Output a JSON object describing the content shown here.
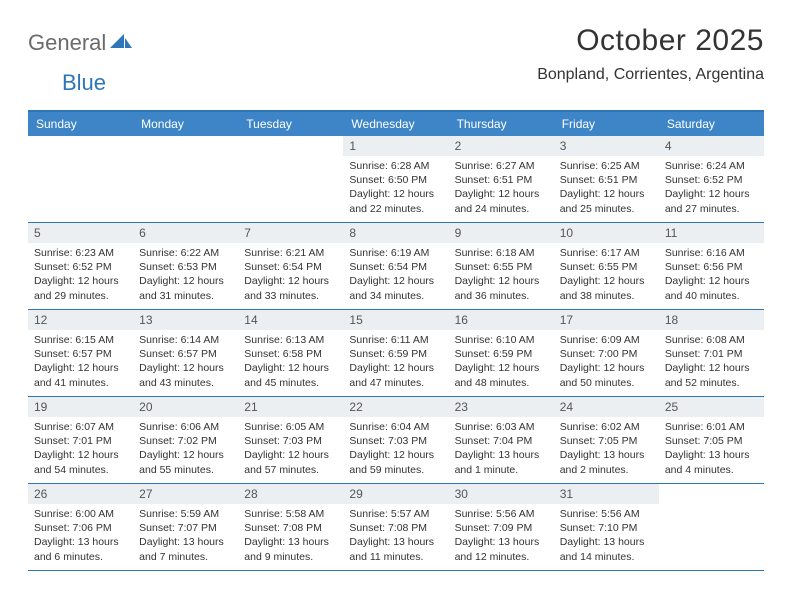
{
  "logo": {
    "general": "General",
    "blue": "Blue"
  },
  "title": "October 2025",
  "location": "Bonpland, Corrientes, Argentina",
  "colors": {
    "header_bar": "#3d85c6",
    "border": "#2f76b8",
    "daynum_bg": "#eceff1",
    "text": "#333333"
  },
  "days_of_week": [
    "Sunday",
    "Monday",
    "Tuesday",
    "Wednesday",
    "Thursday",
    "Friday",
    "Saturday"
  ],
  "weeks": [
    [
      null,
      null,
      null,
      {
        "n": "1",
        "sr": "Sunrise: 6:28 AM",
        "ss": "Sunset: 6:50 PM",
        "dl": "Daylight: 12 hours and 22 minutes."
      },
      {
        "n": "2",
        "sr": "Sunrise: 6:27 AM",
        "ss": "Sunset: 6:51 PM",
        "dl": "Daylight: 12 hours and 24 minutes."
      },
      {
        "n": "3",
        "sr": "Sunrise: 6:25 AM",
        "ss": "Sunset: 6:51 PM",
        "dl": "Daylight: 12 hours and 25 minutes."
      },
      {
        "n": "4",
        "sr": "Sunrise: 6:24 AM",
        "ss": "Sunset: 6:52 PM",
        "dl": "Daylight: 12 hours and 27 minutes."
      }
    ],
    [
      {
        "n": "5",
        "sr": "Sunrise: 6:23 AM",
        "ss": "Sunset: 6:52 PM",
        "dl": "Daylight: 12 hours and 29 minutes."
      },
      {
        "n": "6",
        "sr": "Sunrise: 6:22 AM",
        "ss": "Sunset: 6:53 PM",
        "dl": "Daylight: 12 hours and 31 minutes."
      },
      {
        "n": "7",
        "sr": "Sunrise: 6:21 AM",
        "ss": "Sunset: 6:54 PM",
        "dl": "Daylight: 12 hours and 33 minutes."
      },
      {
        "n": "8",
        "sr": "Sunrise: 6:19 AM",
        "ss": "Sunset: 6:54 PM",
        "dl": "Daylight: 12 hours and 34 minutes."
      },
      {
        "n": "9",
        "sr": "Sunrise: 6:18 AM",
        "ss": "Sunset: 6:55 PM",
        "dl": "Daylight: 12 hours and 36 minutes."
      },
      {
        "n": "10",
        "sr": "Sunrise: 6:17 AM",
        "ss": "Sunset: 6:55 PM",
        "dl": "Daylight: 12 hours and 38 minutes."
      },
      {
        "n": "11",
        "sr": "Sunrise: 6:16 AM",
        "ss": "Sunset: 6:56 PM",
        "dl": "Daylight: 12 hours and 40 minutes."
      }
    ],
    [
      {
        "n": "12",
        "sr": "Sunrise: 6:15 AM",
        "ss": "Sunset: 6:57 PM",
        "dl": "Daylight: 12 hours and 41 minutes."
      },
      {
        "n": "13",
        "sr": "Sunrise: 6:14 AM",
        "ss": "Sunset: 6:57 PM",
        "dl": "Daylight: 12 hours and 43 minutes."
      },
      {
        "n": "14",
        "sr": "Sunrise: 6:13 AM",
        "ss": "Sunset: 6:58 PM",
        "dl": "Daylight: 12 hours and 45 minutes."
      },
      {
        "n": "15",
        "sr": "Sunrise: 6:11 AM",
        "ss": "Sunset: 6:59 PM",
        "dl": "Daylight: 12 hours and 47 minutes."
      },
      {
        "n": "16",
        "sr": "Sunrise: 6:10 AM",
        "ss": "Sunset: 6:59 PM",
        "dl": "Daylight: 12 hours and 48 minutes."
      },
      {
        "n": "17",
        "sr": "Sunrise: 6:09 AM",
        "ss": "Sunset: 7:00 PM",
        "dl": "Daylight: 12 hours and 50 minutes."
      },
      {
        "n": "18",
        "sr": "Sunrise: 6:08 AM",
        "ss": "Sunset: 7:01 PM",
        "dl": "Daylight: 12 hours and 52 minutes."
      }
    ],
    [
      {
        "n": "19",
        "sr": "Sunrise: 6:07 AM",
        "ss": "Sunset: 7:01 PM",
        "dl": "Daylight: 12 hours and 54 minutes."
      },
      {
        "n": "20",
        "sr": "Sunrise: 6:06 AM",
        "ss": "Sunset: 7:02 PM",
        "dl": "Daylight: 12 hours and 55 minutes."
      },
      {
        "n": "21",
        "sr": "Sunrise: 6:05 AM",
        "ss": "Sunset: 7:03 PM",
        "dl": "Daylight: 12 hours and 57 minutes."
      },
      {
        "n": "22",
        "sr": "Sunrise: 6:04 AM",
        "ss": "Sunset: 7:03 PM",
        "dl": "Daylight: 12 hours and 59 minutes."
      },
      {
        "n": "23",
        "sr": "Sunrise: 6:03 AM",
        "ss": "Sunset: 7:04 PM",
        "dl": "Daylight: 13 hours and 1 minute."
      },
      {
        "n": "24",
        "sr": "Sunrise: 6:02 AM",
        "ss": "Sunset: 7:05 PM",
        "dl": "Daylight: 13 hours and 2 minutes."
      },
      {
        "n": "25",
        "sr": "Sunrise: 6:01 AM",
        "ss": "Sunset: 7:05 PM",
        "dl": "Daylight: 13 hours and 4 minutes."
      }
    ],
    [
      {
        "n": "26",
        "sr": "Sunrise: 6:00 AM",
        "ss": "Sunset: 7:06 PM",
        "dl": "Daylight: 13 hours and 6 minutes."
      },
      {
        "n": "27",
        "sr": "Sunrise: 5:59 AM",
        "ss": "Sunset: 7:07 PM",
        "dl": "Daylight: 13 hours and 7 minutes."
      },
      {
        "n": "28",
        "sr": "Sunrise: 5:58 AM",
        "ss": "Sunset: 7:08 PM",
        "dl": "Daylight: 13 hours and 9 minutes."
      },
      {
        "n": "29",
        "sr": "Sunrise: 5:57 AM",
        "ss": "Sunset: 7:08 PM",
        "dl": "Daylight: 13 hours and 11 minutes."
      },
      {
        "n": "30",
        "sr": "Sunrise: 5:56 AM",
        "ss": "Sunset: 7:09 PM",
        "dl": "Daylight: 13 hours and 12 minutes."
      },
      {
        "n": "31",
        "sr": "Sunrise: 5:56 AM",
        "ss": "Sunset: 7:10 PM",
        "dl": "Daylight: 13 hours and 14 minutes."
      },
      null
    ]
  ]
}
